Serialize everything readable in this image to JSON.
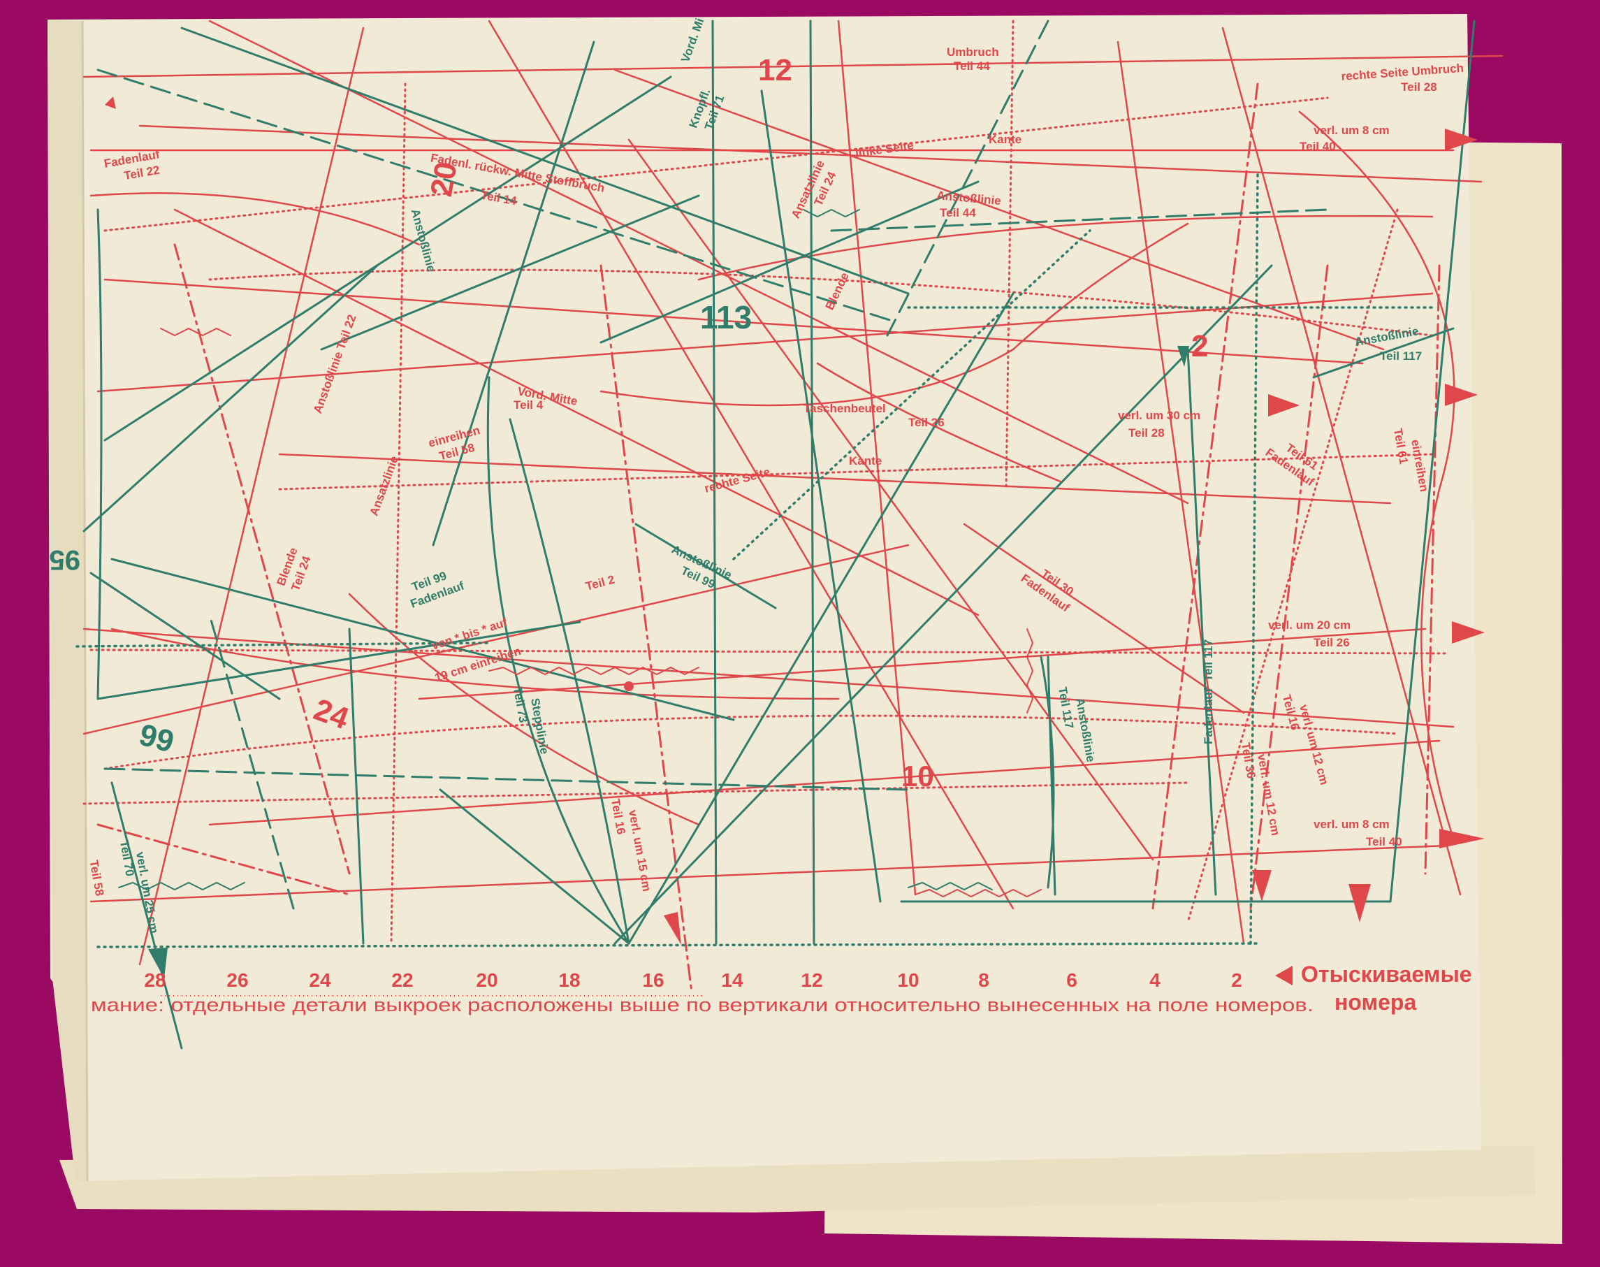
{
  "colors": {
    "background": "#9a0a62",
    "paper": "#f1ead6",
    "paper_shadow": "#e6dcc0",
    "pattern_red": "#e0474b",
    "pattern_green": "#2f7d6a"
  },
  "piece_numbers": {
    "n12": "12",
    "n20": "20",
    "n113": "113",
    "n2": "2",
    "n24": "24",
    "n99": "99",
    "n10": "10",
    "n95": "95"
  },
  "pattern_labels": {
    "fadenlauf_teil22": "Fadenlauf",
    "teil22": "Teil 22",
    "fadenl_rueckw": "Fadenl. rückw. Mitte Stoffbruch",
    "teil14": "Teil 14",
    "umbruch": "Umbruch",
    "teil44a": "Teil 44",
    "rechte_seite_umbruch": "rechte Seite Umbruch",
    "teil28a": "Teil 28",
    "verl_8cm_top": "verl. um 8 cm",
    "teil40a": "Teil 40",
    "kante_top": "Kante",
    "linke_seite": "linke Seite",
    "teil24a": "Teil 24",
    "anstosslinie_44": "Anstoßlinie",
    "teil44b": "Teil 44",
    "knopfl": "Knopfl.",
    "teil71": "Teil 71",
    "vord_mi": "Vord. Mi",
    "anstosslinie_20": "Anstoßlinie",
    "anstosslinie_117": "Anstoßlinie",
    "teil117a": "Teil 117",
    "ansatzlinie_teil24": "Ansatzlinie",
    "blende_top": "Blende",
    "vord_mitte": "Vord. Mitte",
    "teil4": "Teil 4",
    "taschenbeutel": "Taschenbeutel",
    "teil26a": "Teil 26",
    "verl_30cm": "verl. um 30 cm",
    "teil28b": "Teil 28",
    "einreihen_58": "einreihen",
    "teil58": "Teil 58",
    "rechte_seite": "rechte Seite",
    "kante_mid": "Kante",
    "anstosslinie_22": "Anstoßlinie Teil 22",
    "ansatzlinie_left": "Ansatzlinie",
    "blende_left": "Blende",
    "teil24b": "Teil 24",
    "fadenlauf_99": "Fadenlauf",
    "teil99a": "Teil 99",
    "anstosslinie_99": "Anstoßlinie",
    "teil99b": "Teil 99",
    "teil2": "Teil 2",
    "von_bis_auf": "von * bis * auf",
    "cm19_einreihen": "19 cm einreihen",
    "fadenlauf_30": "Fadenlauf",
    "teil30": "Teil 30",
    "fadenlauf_61": "Fadenlauf",
    "teil61a": "Teil 61",
    "einreihen_61": "einreihen",
    "teil61b": "Teil 61",
    "verl_20cm": "verl. um 20 cm",
    "teil26b": "Teil 26",
    "stepplinie": "Stepplinie",
    "teil73": "Teil 73",
    "verl_15cm": "verl. um 15 cm",
    "teil16a": "Teil 16",
    "anstosslinie_117b": "Anstoßlinie",
    "teil117b": "Teil 117",
    "fadenlauf_117": "Fadenlauf",
    "teil117c": "Teil 117",
    "verl_12cm_a": "verl. um 12 cm",
    "teil36": "Teil 36",
    "verl_12cm_b": "verl. um 12 cm",
    "teil16b": "Teil 16",
    "verl_8cm_bottom": "verl. um 8 cm",
    "teil40b": "Teil 40",
    "verl_25cm": "verl. um 25 cm",
    "teil70": "Teil 70",
    "teil58b": "Teil 58"
  },
  "scale": {
    "numbers": [
      "28",
      "26",
      "24",
      "22",
      "20",
      "18",
      "16",
      "14",
      "12",
      "10",
      "8",
      "6",
      "4",
      "2"
    ],
    "search_label_line1": "Отыскиваемые",
    "search_label_line2": "номера"
  },
  "notice": "мание: отдельные детали выкроек расположены выше по вертикали относительно вынесенных на поле номеров."
}
